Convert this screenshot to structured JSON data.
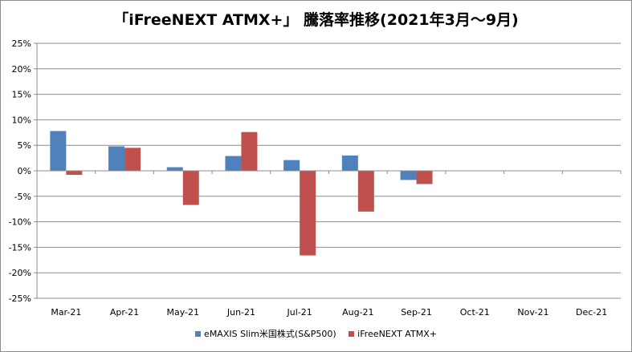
{
  "chart_data": {
    "type": "bar",
    "title": "「iFreeNEXT ATMX+」 騰落率推移(2021年3月～9月)",
    "categories": [
      "Mar-21",
      "Apr-21",
      "May-21",
      "Jun-21",
      "Jul-21",
      "Aug-21",
      "Sep-21",
      "Oct-21",
      "Nov-21",
      "Dec-21"
    ],
    "series": [
      {
        "name": "eMAXIS Slim米国株式(S&P500)",
        "color": "#4f81bd",
        "values": [
          7.8,
          4.8,
          0.7,
          2.9,
          2.1,
          3.0,
          -1.8,
          null,
          null,
          null
        ]
      },
      {
        "name": "iFreeNEXT ATMX+",
        "color": "#c0504d",
        "values": [
          -0.8,
          4.5,
          -6.7,
          7.6,
          -16.6,
          -8.0,
          -2.6,
          null,
          null,
          null
        ]
      }
    ],
    "ylim": [
      -25,
      25
    ],
    "y_tick_step": 5,
    "y_tick_labels": [
      "25%",
      "20%",
      "15%",
      "10%",
      "5%",
      "0%",
      "-5%",
      "-10%",
      "-15%",
      "-20%",
      "-25%"
    ],
    "grid": true,
    "legend_position": "bottom"
  }
}
